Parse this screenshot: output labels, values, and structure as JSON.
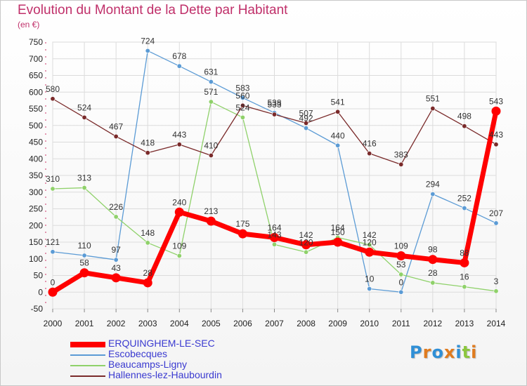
{
  "chart_data": {
    "type": "line",
    "title": "Evolution du Montant de la Dette par Habitant",
    "subtitle": "(en €)",
    "x": [
      "2000",
      "2001",
      "2002",
      "2003",
      "2004",
      "2005",
      "2006",
      "2007",
      "2008",
      "2009",
      "2010",
      "2011",
      "2012",
      "2013",
      "2014"
    ],
    "ylim": [
      -50,
      750
    ],
    "yticks": [
      -50,
      0,
      50,
      100,
      150,
      200,
      250,
      300,
      350,
      400,
      450,
      500,
      550,
      600,
      650,
      700,
      750
    ],
    "grid": true,
    "legend": "bottom-left",
    "series": [
      {
        "name": "ERQUINGHEM-LE-SEC",
        "color": "#ff0000",
        "values": [
          0,
          58,
          43,
          28,
          240,
          213,
          175,
          164,
          142,
          150,
          120,
          109,
          98,
          88,
          543
        ]
      },
      {
        "name": "Escobecques",
        "color": "#5b9bd5",
        "values": [
          121,
          110,
          97,
          724,
          678,
          631,
          583,
          538,
          492,
          440,
          10,
          0,
          294,
          252,
          207
        ]
      },
      {
        "name": "Beaucamps-Ligny",
        "color": "#8fd16a",
        "values": [
          310,
          313,
          226,
          148,
          109,
          571,
          524,
          143,
          120,
          164,
          142,
          53,
          28,
          16,
          3
        ]
      },
      {
        "name": "Hallennes-lez-Haubourdin",
        "color": "#7a2a2a",
        "values": [
          580,
          524,
          467,
          418,
          443,
          410,
          560,
          533,
          507,
          541,
          416,
          383,
          551,
          498,
          443
        ]
      }
    ]
  },
  "legend_items": [
    {
      "label": "ERQUINGHEM-LE-SEC",
      "color": "#ff0000"
    },
    {
      "label": "Escobecques",
      "color": "#5b9bd5"
    },
    {
      "label": "Beaucamps-Ligny",
      "color": "#8fd16a"
    },
    {
      "label": "Hallennes-lez-Haubourdin",
      "color": "#7a2a2a"
    }
  ],
  "logo": {
    "text": "Proxiti",
    "colors": [
      "#2f8fd6",
      "#e07b1e",
      "#2f8fd6",
      "#e07b1e",
      "#2f8fd6",
      "#8cc63f",
      "#e07b1e"
    ]
  }
}
